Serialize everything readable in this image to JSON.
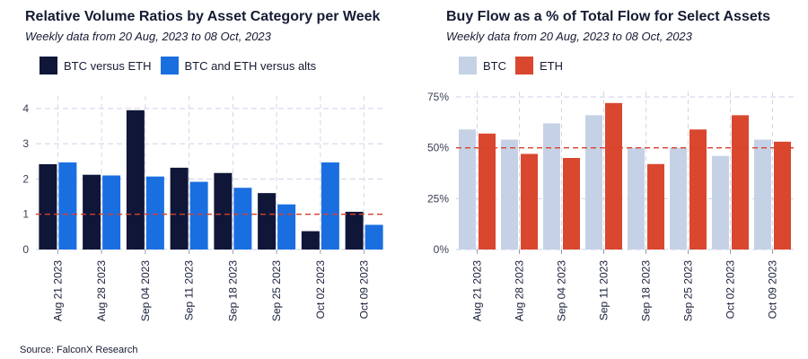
{
  "source": "Source: FalconX Research",
  "chart_data": [
    {
      "type": "bar",
      "title": "Relative Volume Ratios by Asset Category per Week",
      "subtitle": "Weekly data from 20 Aug, 2023 to 08 Oct, 2023",
      "categories": [
        "Aug 21 2023",
        "Aug 28 2023",
        "Sep 04 2023",
        "Sep 11 2023",
        "Sep 18 2023",
        "Sep 25 2023",
        "Oct 02 2023",
        "Oct 09 2023"
      ],
      "series": [
        {
          "name": "BTC versus ETH",
          "color": "#0f1638",
          "values": [
            2.42,
            2.12,
            3.95,
            2.32,
            2.17,
            1.6,
            0.52,
            1.07
          ]
        },
        {
          "name": "BTC and ETH versus alts",
          "color": "#1a6fe0",
          "values": [
            2.47,
            2.1,
            2.07,
            1.92,
            1.75,
            1.28,
            2.47,
            0.7
          ]
        }
      ],
      "yticks": [
        "0",
        "1",
        "2",
        "3",
        "4"
      ],
      "ylim": [
        0,
        4.2
      ],
      "reference_line": {
        "value": 1,
        "color": "#d9402b",
        "style": "dashed"
      },
      "grid": true,
      "legend_position": "top-left"
    },
    {
      "type": "bar",
      "title": "Buy Flow as a % of Total Flow for Select Assets",
      "subtitle": "Weekly data from 20 Aug, 2023 to 08 Oct, 2023",
      "categories": [
        "Aug 21 2023",
        "Aug 28 2023",
        "Sep 04 2023",
        "Sep 11 2023",
        "Sep 18 2023",
        "Sep 25 2023",
        "Oct 02 2023",
        "Oct 09 2023"
      ],
      "series": [
        {
          "name": "BTC",
          "color": "#c5d2e6",
          "values": [
            59,
            54,
            62,
            66,
            50,
            50,
            46,
            54
          ]
        },
        {
          "name": "ETH",
          "color": "#d9472f",
          "values": [
            57,
            47,
            45,
            72,
            42,
            59,
            66,
            53
          ]
        }
      ],
      "yticks": [
        "0%",
        "25%",
        "50%",
        "75%"
      ],
      "ylim": [
        0,
        75
      ],
      "reference_line": {
        "value": 50,
        "color": "#d9402b",
        "style": "dashed"
      },
      "grid": true,
      "legend_position": "top-left"
    }
  ]
}
